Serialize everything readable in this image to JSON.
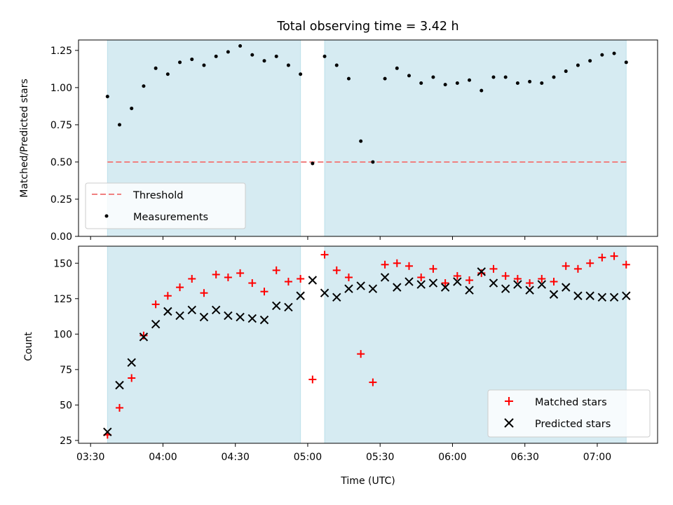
{
  "chart_data": [
    {
      "type": "scatter",
      "title": "Total observing time = 3.42 h",
      "ylabel": "Matched/Predicted stars",
      "xlabel": "",
      "x_axis_type": "time_utc",
      "xlim": [
        "03:25",
        "07:25"
      ],
      "ylim": [
        0.0,
        1.32
      ],
      "yticks": [
        0.0,
        0.25,
        0.5,
        0.75,
        1.0,
        1.25
      ],
      "ytick_labels": [
        "0.00",
        "0.25",
        "0.50",
        "0.75",
        "1.00",
        "1.25"
      ],
      "xticks": [
        "03:30",
        "04:00",
        "04:30",
        "05:00",
        "05:30",
        "06:00",
        "06:30",
        "07:00"
      ],
      "shaded_intervals": [
        [
          "03:37",
          "04:57"
        ],
        [
          "05:07",
          "07:12"
        ]
      ],
      "shade_color": "#add8e6",
      "threshold": {
        "name": "Threshold",
        "value": 0.5,
        "x_range": [
          "03:37",
          "07:12"
        ],
        "color": "#f08080",
        "style": "dashed"
      },
      "series": [
        {
          "name": "Measurements",
          "marker": "dot",
          "color": "#000000",
          "x": [
            "03:37",
            "03:42",
            "03:47",
            "03:52",
            "03:57",
            "04:02",
            "04:07",
            "04:12",
            "04:17",
            "04:22",
            "04:27",
            "04:32",
            "04:37",
            "04:42",
            "04:47",
            "04:52",
            "04:57",
            "05:02",
            "05:07",
            "05:12",
            "05:17",
            "05:22",
            "05:27",
            "05:32",
            "05:37",
            "05:42",
            "05:47",
            "05:52",
            "05:57",
            "06:02",
            "06:07",
            "06:12",
            "06:17",
            "06:22",
            "06:27",
            "06:32",
            "06:37",
            "06:42",
            "06:47",
            "06:52",
            "06:57",
            "07:02",
            "07:07",
            "07:12"
          ],
          "y": [
            0.94,
            0.75,
            0.86,
            1.01,
            1.13,
            1.09,
            1.17,
            1.19,
            1.15,
            1.21,
            1.24,
            1.28,
            1.22,
            1.18,
            1.21,
            1.15,
            1.09,
            0.49,
            1.21,
            1.15,
            1.06,
            0.64,
            0.5,
            1.06,
            1.13,
            1.08,
            1.03,
            1.07,
            1.02,
            1.03,
            1.05,
            0.98,
            1.07,
            1.07,
            1.03,
            1.04,
            1.03,
            1.07,
            1.11,
            1.15,
            1.18,
            1.22,
            1.23,
            1.17
          ]
        }
      ],
      "legend": {
        "position": "lower-left",
        "entries": [
          "Threshold",
          "Measurements"
        ]
      }
    },
    {
      "type": "scatter",
      "title": "",
      "ylabel": "Count",
      "xlabel": "Time (UTC)",
      "x_axis_type": "time_utc",
      "xlim": [
        "03:25",
        "07:25"
      ],
      "ylim": [
        23,
        162
      ],
      "yticks": [
        25,
        50,
        75,
        100,
        125,
        150
      ],
      "ytick_labels": [
        "25",
        "50",
        "75",
        "100",
        "125",
        "150"
      ],
      "xticks": [
        "03:30",
        "04:00",
        "04:30",
        "05:00",
        "05:30",
        "06:00",
        "06:30",
        "07:00"
      ],
      "shaded_intervals": [
        [
          "03:37",
          "04:57"
        ],
        [
          "05:07",
          "07:12"
        ]
      ],
      "shade_color": "#add8e6",
      "series": [
        {
          "name": "Matched stars",
          "marker": "plus",
          "color": "#ff0000",
          "x": [
            "03:37",
            "03:42",
            "03:47",
            "03:52",
            "03:57",
            "04:02",
            "04:07",
            "04:12",
            "04:17",
            "04:22",
            "04:27",
            "04:32",
            "04:37",
            "04:42",
            "04:47",
            "04:52",
            "04:57",
            "05:02",
            "05:07",
            "05:12",
            "05:17",
            "05:22",
            "05:27",
            "05:32",
            "05:37",
            "05:42",
            "05:47",
            "05:52",
            "05:57",
            "06:02",
            "06:07",
            "06:12",
            "06:17",
            "06:22",
            "06:27",
            "06:32",
            "06:37",
            "06:42",
            "06:47",
            "06:52",
            "06:57",
            "07:02",
            "07:07",
            "07:12"
          ],
          "y": [
            29,
            48,
            69,
            99,
            121,
            127,
            133,
            139,
            129,
            142,
            140,
            143,
            136,
            130,
            145,
            137,
            139,
            68,
            156,
            145,
            140,
            86,
            66,
            149,
            150,
            148,
            140,
            146,
            136,
            141,
            138,
            143,
            146,
            141,
            139,
            136,
            139,
            137,
            148,
            146,
            150,
            154,
            155,
            149
          ]
        },
        {
          "name": "Predicted stars",
          "marker": "cross",
          "color": "#000000",
          "x": [
            "03:37",
            "03:42",
            "03:47",
            "03:52",
            "03:57",
            "04:02",
            "04:07",
            "04:12",
            "04:17",
            "04:22",
            "04:27",
            "04:32",
            "04:37",
            "04:42",
            "04:47",
            "04:52",
            "04:57",
            "05:02",
            "05:07",
            "05:12",
            "05:17",
            "05:22",
            "05:27",
            "05:32",
            "05:37",
            "05:42",
            "05:47",
            "05:52",
            "05:57",
            "06:02",
            "06:07",
            "06:12",
            "06:17",
            "06:22",
            "06:27",
            "06:32",
            "06:37",
            "06:42",
            "06:47",
            "06:52",
            "06:57",
            "07:02",
            "07:07",
            "07:12"
          ],
          "y": [
            31,
            64,
            80,
            98,
            107,
            116,
            113,
            117,
            112,
            117,
            113,
            112,
            111,
            110,
            120,
            119,
            127,
            138,
            129,
            126,
            132,
            134,
            132,
            140,
            133,
            137,
            135,
            136,
            133,
            137,
            131,
            144,
            136,
            132,
            135,
            131,
            135,
            128,
            133,
            127,
            127,
            126,
            126,
            127
          ]
        }
      ],
      "legend": {
        "position": "lower-right",
        "entries": [
          "Matched stars",
          "Predicted stars"
        ]
      }
    }
  ]
}
